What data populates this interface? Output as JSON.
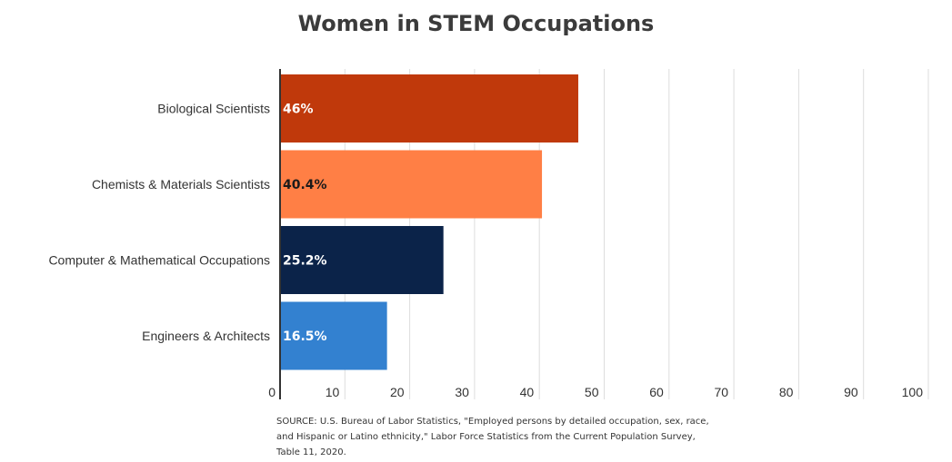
{
  "title": "Women in STEM Occupations",
  "source": "SOURCE: U.S. Bureau of Labor Statistics, \"Employed persons by detailed occupation, sex, race, and Hispanic or Latino ethnicity,\" Labor Force Statistics from the Current Population Survey, Table 11, 2020.",
  "chart_data": {
    "type": "bar",
    "orientation": "horizontal",
    "title": "Women in STEM Occupations",
    "categories": [
      "Biological Scientists",
      "Chemists & Materials Scientists",
      "Computer & Mathematical Occupations",
      "Engineers & Architects"
    ],
    "values": [
      46,
      40.4,
      25.2,
      16.5
    ],
    "labels": [
      "46%",
      "40.4%",
      "25.2%",
      "16.5%"
    ],
    "colors": [
      "#c0390b",
      "#ff7f45",
      "#0b2349",
      "#3381d0"
    ],
    "label_colors": [
      "#ffffff",
      "#1a1a1a",
      "#ffffff",
      "#ffffff"
    ],
    "xlim": [
      0,
      100
    ],
    "xticks": [
      0,
      10,
      20,
      30,
      40,
      50,
      60,
      70,
      80,
      90,
      100
    ],
    "grid": true
  }
}
